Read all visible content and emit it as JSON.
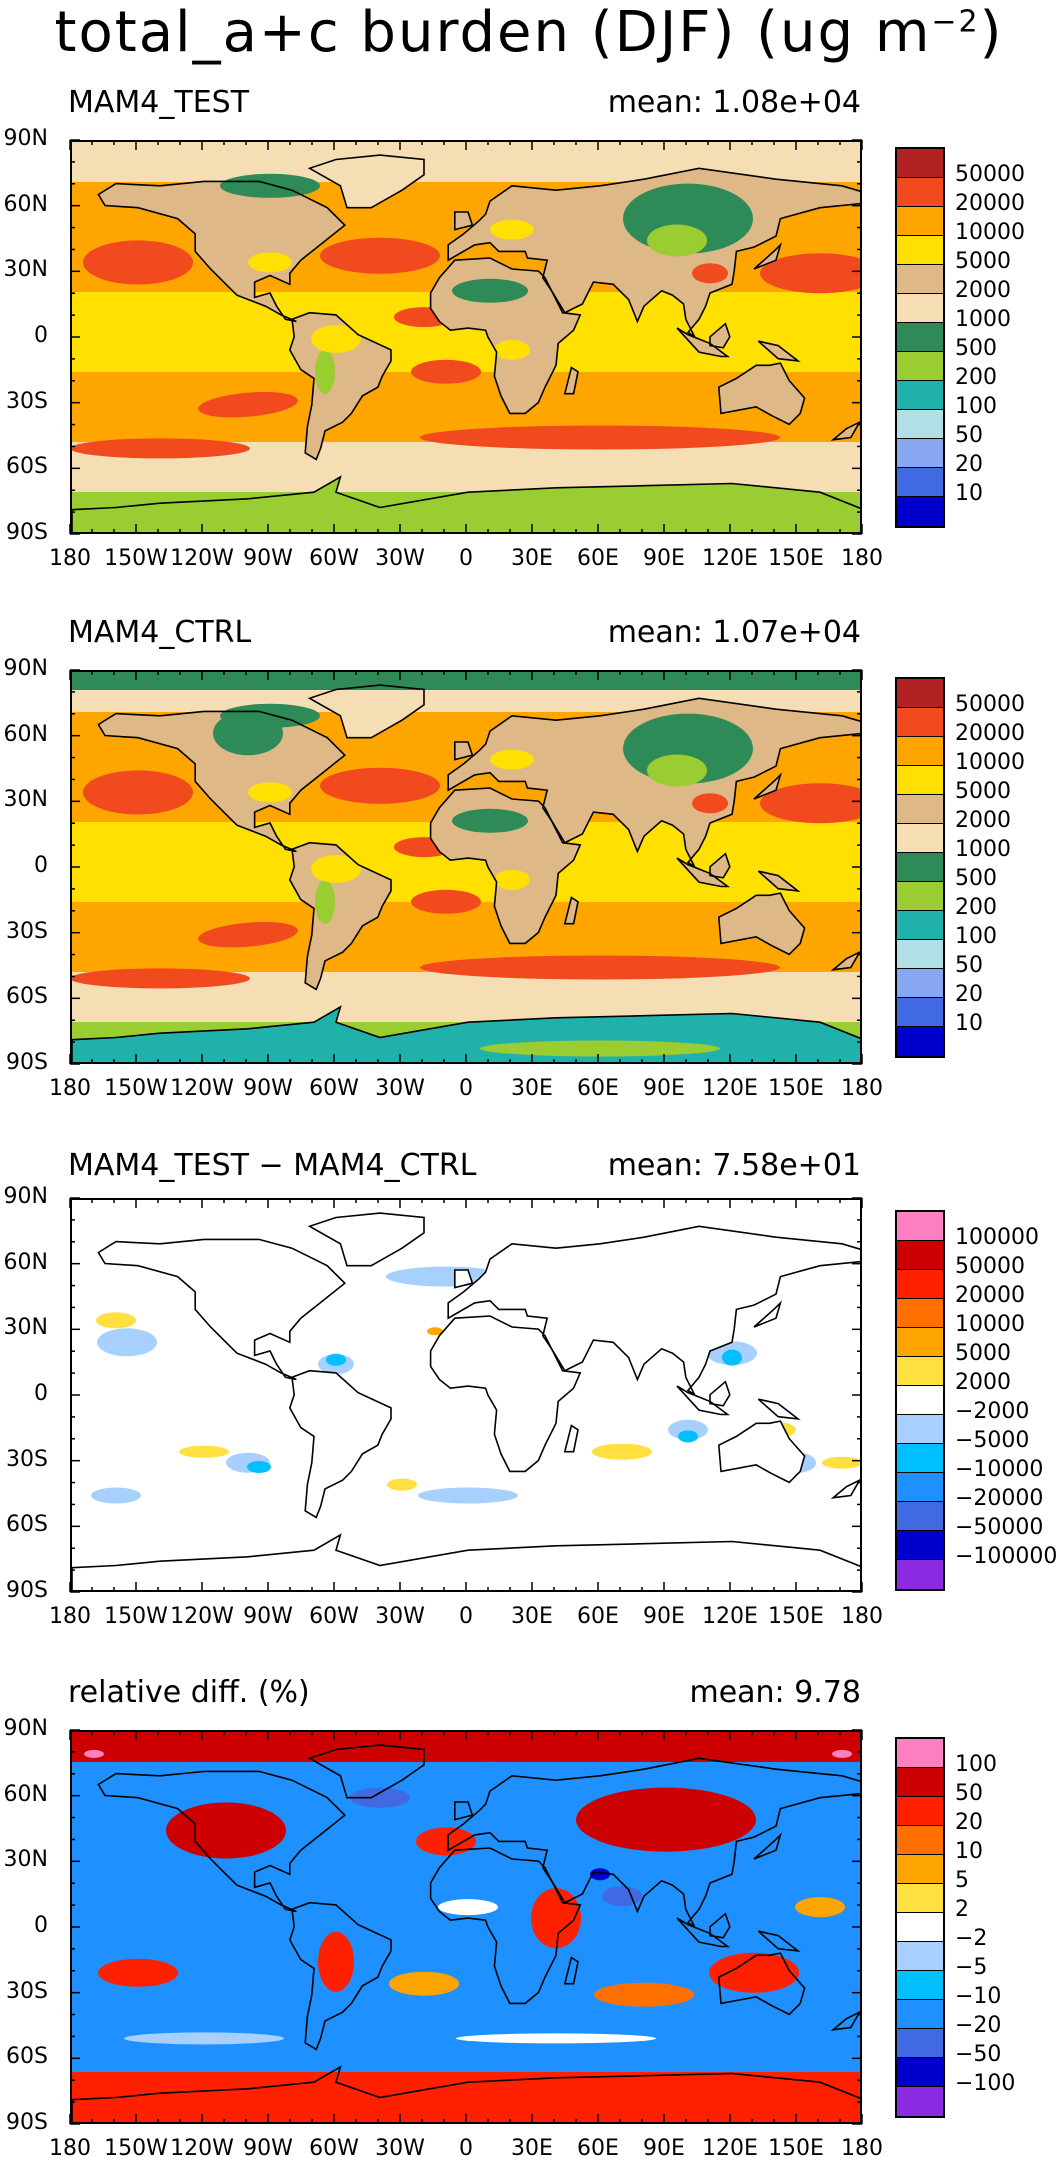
{
  "figure": {
    "title_main": "total_a+c burden (DJF) (ug m",
    "title_exp": "−2",
    "title_close": ")"
  },
  "axes": {
    "lat_ticks": [
      "90N",
      "60N",
      "30N",
      "0",
      "30S",
      "60S",
      "90S"
    ],
    "lon_ticks": [
      "180",
      "150W",
      "120W",
      "90W",
      "60W",
      "30W",
      "0",
      "30E",
      "60E",
      "90E",
      "120E",
      "150E",
      "180"
    ]
  },
  "panels": [
    {
      "title": "MAM4_TEST",
      "mean_text": "mean: 1.08e+04",
      "legend": {
        "labels": [
          "50000",
          "20000",
          "10000",
          "5000",
          "2000",
          "1000",
          "500",
          "200",
          "100",
          "50",
          "20",
          "10"
        ],
        "colors": [
          "#b22222",
          "#f04a1e",
          "#ffa500",
          "#ffe000",
          "#deb887",
          "#f5deb3",
          "#2e8b57",
          "#9acd32",
          "#20b2aa",
          "#b0e0e6",
          "#87a8f0",
          "#4169e1",
          "#0000cd"
        ]
      }
    },
    {
      "title": "MAM4_CTRL",
      "mean_text": "mean: 1.07e+04",
      "legend": {
        "labels": [
          "50000",
          "20000",
          "10000",
          "5000",
          "2000",
          "1000",
          "500",
          "200",
          "100",
          "50",
          "20",
          "10"
        ],
        "colors": [
          "#b22222",
          "#f04a1e",
          "#ffa500",
          "#ffe000",
          "#deb887",
          "#f5deb3",
          "#2e8b57",
          "#9acd32",
          "#20b2aa",
          "#b0e0e6",
          "#87a8f0",
          "#4169e1",
          "#0000cd"
        ]
      }
    },
    {
      "title": "MAM4_TEST − MAM4_CTRL",
      "mean_text": "mean: 7.58e+01",
      "legend": {
        "labels": [
          "100000",
          "50000",
          "20000",
          "10000",
          "5000",
          "2000",
          "−2000",
          "−5000",
          "−10000",
          "−20000",
          "−50000",
          "−100000"
        ],
        "colors": [
          "#ff80c0",
          "#cc0000",
          "#ff2000",
          "#ff7000",
          "#ffa500",
          "#ffe040",
          "#ffffff",
          "#a8d0ff",
          "#00bfff",
          "#1e90ff",
          "#4169e1",
          "#0000cd",
          "#8a2be2"
        ]
      }
    },
    {
      "title": "relative diff. (%)",
      "mean_text": "mean:   9.78",
      "legend": {
        "labels": [
          "100",
          "50",
          "20",
          "10",
          "5",
          "2",
          "−2",
          "−5",
          "−10",
          "−20",
          "−50",
          "−100"
        ],
        "colors": [
          "#ff80c0",
          "#cc0000",
          "#ff2000",
          "#ff7000",
          "#ffa500",
          "#ffe040",
          "#ffffff",
          "#a8d0ff",
          "#00bfff",
          "#1e90ff",
          "#4169e1",
          "#0000cd",
          "#8a2be2"
        ]
      }
    }
  ]
}
